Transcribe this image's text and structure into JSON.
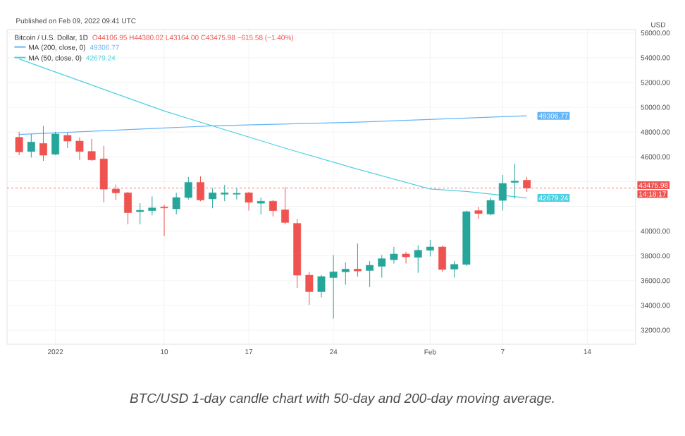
{
  "chart_data": {
    "type": "candlestick",
    "title": "Bitcoin / U.S. Dollar, 1D",
    "subtitle": "O44106.95 H44380.02 L43164.00 C43475.98 −615.58 (−1.40%)",
    "x": [
      "2021-12-29",
      "2021-12-30",
      "2021-12-31",
      "2022-01-01",
      "2022-01-02",
      "2022-01-03",
      "2022-01-04",
      "2022-01-05",
      "2022-01-06",
      "2022-01-07",
      "2022-01-08",
      "2022-01-09",
      "2022-01-10",
      "2022-01-11",
      "2022-01-12",
      "2022-01-13",
      "2022-01-14",
      "2022-01-15",
      "2022-01-16",
      "2022-01-17",
      "2022-01-18",
      "2022-01-19",
      "2022-01-20",
      "2022-01-21",
      "2022-01-22",
      "2022-01-23",
      "2022-01-24",
      "2022-01-25",
      "2022-01-26",
      "2022-01-27",
      "2022-01-28",
      "2022-01-29",
      "2022-01-30",
      "2022-01-31",
      "2022-02-01",
      "2022-02-02",
      "2022-02-03",
      "2022-02-04",
      "2022-02-05",
      "2022-02-06",
      "2022-02-07",
      "2022-02-08",
      "2022-02-09"
    ],
    "ohlc": [
      [
        47570,
        48030,
        46130,
        46400
      ],
      [
        46430,
        47840,
        45940,
        47190
      ],
      [
        47080,
        48490,
        45670,
        46130
      ],
      [
        46210,
        48030,
        46130,
        47840
      ],
      [
        47730,
        47950,
        46700,
        47270
      ],
      [
        47270,
        47570,
        45750,
        46430
      ],
      [
        46430,
        47460,
        45670,
        45750
      ],
      [
        45830,
        46890,
        42330,
        43390
      ],
      [
        43390,
        43770,
        42520,
        43090
      ],
      [
        43090,
        43170,
        40540,
        41490
      ],
      [
        41570,
        42250,
        40540,
        41680
      ],
      [
        41650,
        42790,
        41270,
        41870
      ],
      [
        41950,
        42140,
        39590,
        41870
      ],
      [
        41800,
        43090,
        41340,
        42710
      ],
      [
        42710,
        44380,
        42560,
        43930
      ],
      [
        43930,
        44420,
        42410,
        42520
      ],
      [
        42600,
        43470,
        41840,
        43090
      ],
      [
        42980,
        43740,
        42410,
        43090
      ],
      [
        42980,
        43470,
        42560,
        43050
      ],
      [
        43090,
        43170,
        41650,
        42330
      ],
      [
        42250,
        42710,
        41340,
        42410
      ],
      [
        42410,
        42520,
        41190,
        41650
      ],
      [
        41720,
        43550,
        40540,
        40700
      ],
      [
        40620,
        41000,
        35410,
        36440
      ],
      [
        36440,
        36710,
        34050,
        35110
      ],
      [
        35110,
        36440,
        34650,
        36330
      ],
      [
        36250,
        38070,
        32940,
        36710
      ],
      [
        36710,
        37470,
        35680,
        36930
      ],
      [
        36930,
        38990,
        36330,
        36780
      ],
      [
        36820,
        37580,
        35490,
        37240
      ],
      [
        37160,
        38070,
        36250,
        37770
      ],
      [
        37690,
        38720,
        37390,
        38150
      ],
      [
        38150,
        38340,
        37390,
        37920
      ],
      [
        37880,
        38830,
        36630,
        38450
      ],
      [
        38450,
        39290,
        37960,
        38720
      ],
      [
        38720,
        38830,
        36710,
        36900
      ],
      [
        36930,
        37580,
        36250,
        37310
      ],
      [
        37310,
        41650,
        37200,
        41570
      ],
      [
        41650,
        41950,
        41000,
        41420
      ],
      [
        41380,
        42710,
        41270,
        42480
      ],
      [
        42480,
        44530,
        41650,
        43850
      ],
      [
        43930,
        45450,
        42630,
        44040
      ],
      [
        44106.95,
        44380.02,
        43164.0,
        43475.98
      ]
    ],
    "colors": [
      "#ef5350",
      "#26a69a",
      "#ef5350",
      "#26a69a",
      "#ef5350",
      "#ef5350",
      "#ef5350",
      "#ef5350",
      "#ef5350",
      "#ef5350",
      "#26a69a",
      "#26a69a",
      "#ef5350",
      "#26a69a",
      "#26a69a",
      "#ef5350",
      "#26a69a",
      "#26a69a",
      "#26a69a",
      "#ef5350",
      "#26a69a",
      "#ef5350",
      "#ef5350",
      "#ef5350",
      "#ef5350",
      "#26a69a",
      "#26a69a",
      "#26a69a",
      "#ef5350",
      "#26a69a",
      "#26a69a",
      "#26a69a",
      "#ef5350",
      "#26a69a",
      "#26a69a",
      "#ef5350",
      "#26a69a",
      "#26a69a",
      "#ef5350",
      "#26a69a",
      "#26a69a",
      "#26a69a",
      "#ef5350"
    ],
    "series": [
      {
        "type": "line",
        "name": "MA (200, close, 0)",
        "color": "#64b5f6",
        "x": [
          "2021-12-29",
          "2022-01-14",
          "2022-01-26",
          "2022-02-09"
        ],
        "values": [
          47800,
          48500,
          48800,
          49306.77
        ],
        "value_labels": [
          null,
          null,
          null,
          "49306.77"
        ]
      },
      {
        "type": "line",
        "name": "MA (50, close, 0)",
        "color": "#4dd0e1",
        "x": [
          "2021-12-29",
          "2022-01-10",
          "2022-01-14",
          "2022-01-20",
          "2022-01-26",
          "2022-02-01",
          "2022-02-04",
          "2022-02-09"
        ],
        "values": [
          53900,
          49700,
          48500,
          46700,
          45000,
          43400,
          43200,
          42679.24
        ],
        "value_labels": [
          null,
          null,
          null,
          null,
          null,
          null,
          null,
          "42679.24"
        ]
      }
    ],
    "xlim": [
      "2021-12-28",
      "2022-02-18"
    ],
    "xticks": [
      {
        "value": "2022-01-01",
        "label": "2022"
      },
      {
        "value": "2022-01-10",
        "label": "10"
      },
      {
        "value": "2022-01-17",
        "label": "17"
      },
      {
        "value": "2022-01-24",
        "label": "24"
      },
      {
        "value": "2022-02-01",
        "label": "Feb"
      },
      {
        "value": "2022-02-07",
        "label": "7"
      },
      {
        "value": "2022-02-14",
        "label": "14"
      }
    ],
    "ylim": [
      30860,
      56270
    ],
    "yticks": [
      {
        "value": 32000,
        "label": "32000.00"
      },
      {
        "value": 34000,
        "label": "34000.00"
      },
      {
        "value": 36000,
        "label": "36000.00"
      },
      {
        "value": 38000,
        "label": "38000.00"
      },
      {
        "value": 40000,
        "label": "40000.00"
      },
      {
        "value": 42000,
        "label": null
      },
      {
        "value": 44000,
        "label": null
      },
      {
        "value": 46000,
        "label": "46000.00"
      },
      {
        "value": 48000,
        "label": "48000.00"
      },
      {
        "value": 50000,
        "label": "50000.00"
      },
      {
        "value": 52000,
        "label": "52000.00"
      },
      {
        "value": 54000,
        "label": "54000.00"
      },
      {
        "value": 56000,
        "label": "56000.00"
      }
    ],
    "ref_lines": [
      {
        "axis": "y",
        "value": 43475.98,
        "label": "43475.98",
        "color": "#ef5350",
        "line_style": "dashed"
      }
    ],
    "grid": true,
    "legend": "top left",
    "annotations": [
      "Published on Feb 09, 2022 09:41 UTC",
      "BTC/USD 1-day candle chart with 50-day and 200-day moving average.",
      "14:18:17",
      "USD"
    ]
  }
}
